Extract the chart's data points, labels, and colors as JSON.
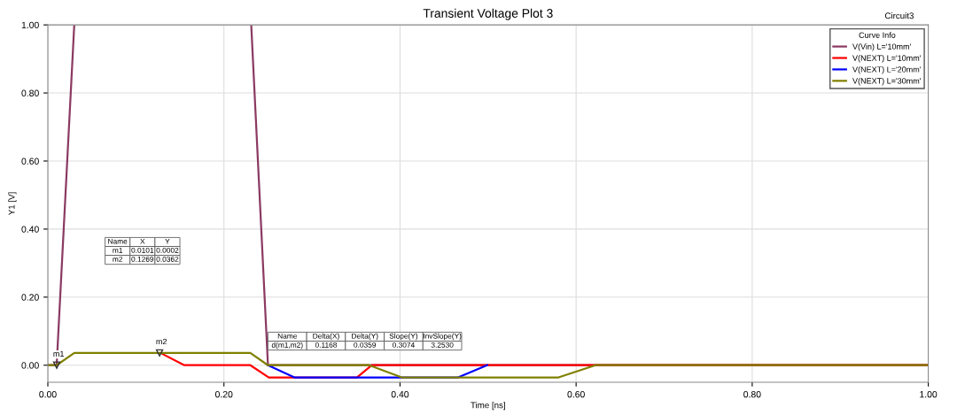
{
  "chart_data": {
    "type": "line",
    "title": "Transient Voltage Plot 3",
    "xlabel": "Time [ns]",
    "ylabel": "Y1 [V]",
    "legend_title": "Curve Info",
    "xlim": [
      0,
      1.0
    ],
    "xticks": [
      {
        "value": 0,
        "label": "0.00"
      },
      {
        "value": 0.2,
        "label": "0.20"
      },
      {
        "value": 0.4,
        "label": "0.40"
      },
      {
        "value": 0.6,
        "label": "0.60"
      },
      {
        "value": 0.8,
        "label": "0.80"
      },
      {
        "value": 1.0,
        "label": "1.00"
      }
    ],
    "ylim": [
      -0.05,
      1.0
    ],
    "yticks": [
      {
        "value": 0,
        "label": "0.00"
      },
      {
        "value": 0.2,
        "label": "0.20"
      },
      {
        "value": 0.4,
        "label": "0.40"
      },
      {
        "value": 0.6,
        "label": "0.60"
      },
      {
        "value": 0.8,
        "label": "0.80"
      },
      {
        "value": 1.0,
        "label": "1.00"
      }
    ],
    "grid": true,
    "legend": "top right",
    "marker": "none",
    "line_style": "solid",
    "series": [
      {
        "name": "V(Vin) L='10mm'",
        "color": "#8b3a62",
        "x": [
          0,
          0.01,
          0.03,
          0.031,
          0.23,
          0.231,
          0.25,
          1.0
        ],
        "values": [
          0,
          0,
          1.0,
          null,
          null,
          1.0,
          0,
          0
        ]
      },
      {
        "name": "V(NEXT) L='10mm'",
        "color": "#ff0000",
        "x": [
          0.128,
          0.155,
          0.23,
          0.251,
          0.351,
          0.368,
          1.0
        ],
        "values": [
          0.036,
          0,
          0,
          -0.036,
          -0.036,
          0,
          0
        ]
      },
      {
        "name": "V(NEXT) L='20mm'",
        "color": "#0000ff",
        "x": [
          0.25,
          0.28,
          0.466,
          0.499
        ],
        "values": [
          0,
          -0.036,
          -0.036,
          0
        ]
      },
      {
        "name": "V(NEXT) L='30mm'",
        "color": "#808000",
        "x": [
          0,
          0.01,
          0.03,
          0.23,
          0.25,
          0.365,
          0.402,
          0.58,
          0.622,
          1.0
        ],
        "values": [
          0,
          0,
          0.036,
          0.036,
          0,
          0,
          -0.036,
          -0.036,
          0,
          0
        ]
      }
    ],
    "annotations": [
      {
        "text": "m1",
        "x": 0.0101,
        "y": 0.0002
      },
      {
        "text": "m2",
        "x": 0.1269,
        "y": 0.0362
      },
      "Name\tX\tY",
      "m1\t0.0101\t0.0002",
      "m2\t0.1269\t0.0362",
      "Name\tDelta(X)\tDelta(Y)\tSlope(Y)\tInvSlope(Y)",
      "d(m1,m2)\t0.1168\t0.0359\t0.3074\t3.2530",
      "Circuit3"
    ]
  }
}
